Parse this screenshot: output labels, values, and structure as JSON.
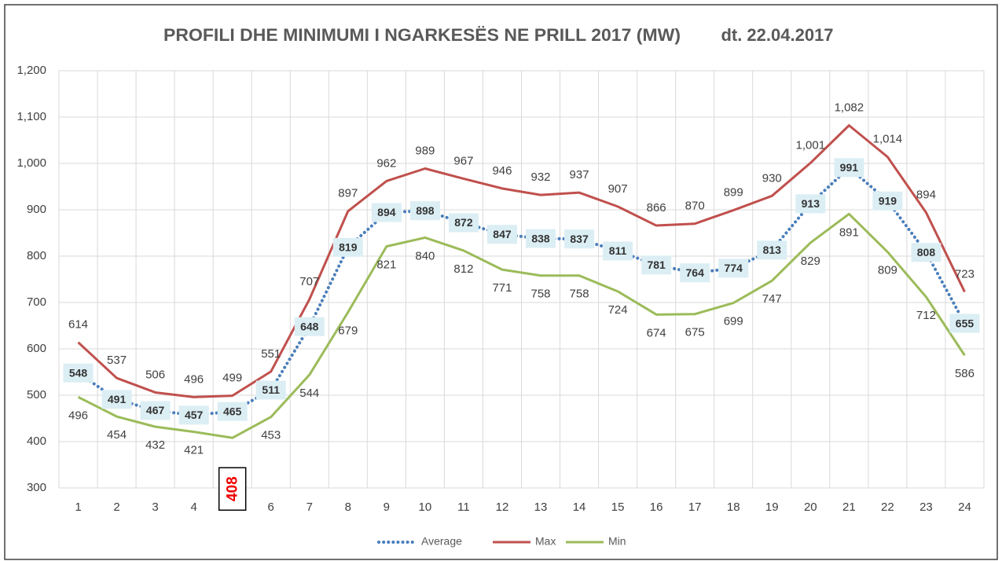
{
  "chart_data": {
    "type": "line",
    "title": "PROFILI DHE MINIMUMI I NGARKESËS NE PRILL 2017 (MW)",
    "date": "dt. 22.04.2017",
    "categories": [
      "1",
      "2",
      "3",
      "4",
      "5",
      "6",
      "7",
      "8",
      "9",
      "10",
      "11",
      "12",
      "13",
      "14",
      "15",
      "16",
      "17",
      "18",
      "19",
      "20",
      "21",
      "22",
      "23",
      "24"
    ],
    "series": [
      {
        "name": "Average",
        "color": "#4a7ebb",
        "dash": "dotted",
        "values": [
          548,
          491,
          467,
          457,
          465,
          511,
          648,
          819,
          894,
          898,
          872,
          847,
          838,
          837,
          811,
          781,
          764,
          774,
          813,
          913,
          991,
          919,
          808,
          655
        ]
      },
      {
        "name": "Max",
        "color": "#c0504d",
        "values": [
          614,
          537,
          506,
          496,
          499,
          551,
          707,
          897,
          962,
          989,
          967,
          946,
          932,
          937,
          907,
          866,
          870,
          899,
          930,
          1001,
          1082,
          1014,
          894,
          723
        ],
        "value_labels": [
          "614",
          "537",
          "506",
          "496",
          "499",
          "551",
          "707",
          "897",
          "962",
          "989",
          "967",
          "946",
          "932",
          "937",
          "907",
          "866",
          "870",
          "899",
          "930",
          "1,001",
          "1,082",
          "1,014",
          "894",
          "723"
        ]
      },
      {
        "name": "Min",
        "color": "#9bbb59",
        "values": [
          496,
          454,
          432,
          421,
          408,
          453,
          544,
          679,
          821,
          840,
          812,
          771,
          758,
          758,
          724,
          674,
          675,
          699,
          747,
          829,
          891,
          809,
          712,
          586
        ]
      }
    ],
    "ylim": [
      300,
      1200
    ],
    "yticks": [
      300,
      400,
      500,
      600,
      700,
      800,
      900,
      {
        "value": 1000,
        "label": "1,000"
      },
      {
        "value": 1100,
        "label": "1,100"
      },
      {
        "value": 1200,
        "label": "1,200"
      }
    ],
    "grid": true,
    "legend": "bottom"
  }
}
